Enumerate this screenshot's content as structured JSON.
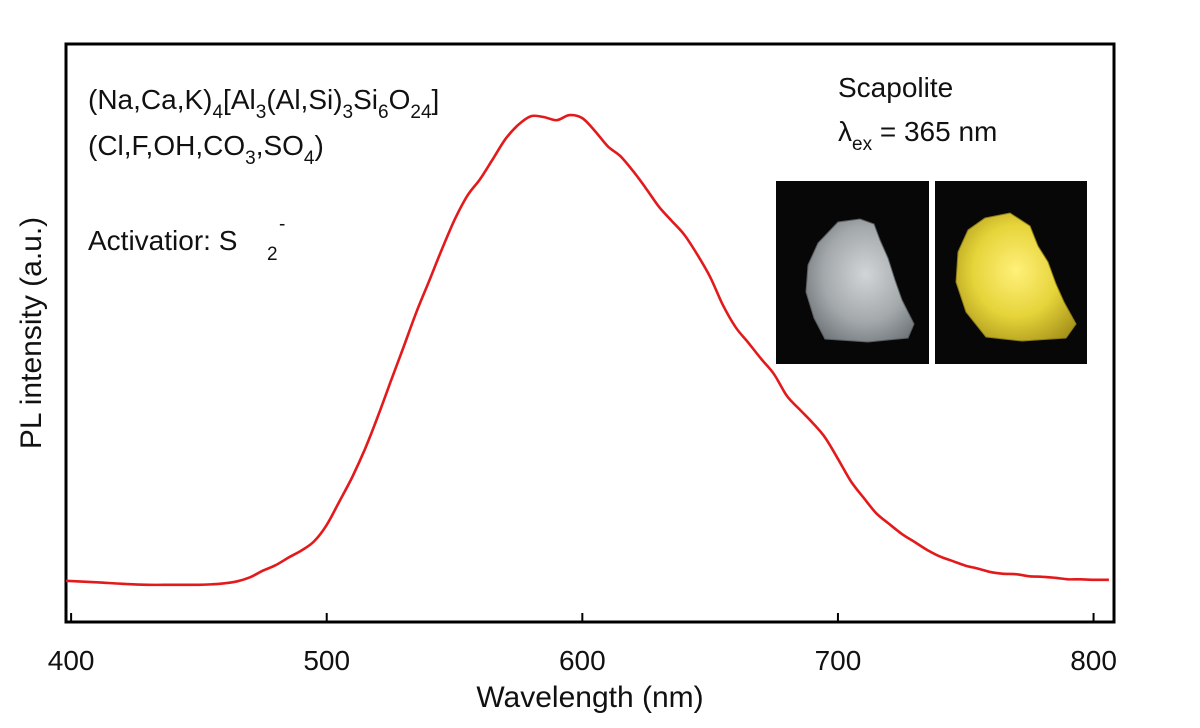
{
  "chart_data": {
    "type": "line",
    "title": "",
    "xlabel": "Wavelength (nm)",
    "ylabel": "PL intensity (a.u.)",
    "xlim": [
      398,
      808
    ],
    "ylim": [
      0,
      1
    ],
    "xticks": [
      400,
      500,
      600,
      700,
      800
    ],
    "xtick_labels": [
      "400",
      "500",
      "600",
      "700",
      "800"
    ],
    "yticks": [],
    "grid": false,
    "series": [
      {
        "name": "Scapolite PL emission",
        "color": "#e31a1c",
        "x": [
          398,
          410,
          420,
          430,
          440,
          450,
          455,
          460,
          465,
          470,
          475,
          480,
          485,
          490,
          495,
          500,
          505,
          510,
          515,
          520,
          525,
          530,
          535,
          540,
          545,
          550,
          555,
          560,
          565,
          570,
          575,
          580,
          585,
          590,
          595,
          600,
          605,
          610,
          615,
          620,
          625,
          630,
          635,
          640,
          645,
          650,
          655,
          660,
          665,
          670,
          675,
          680,
          685,
          690,
          695,
          700,
          705,
          710,
          715,
          720,
          725,
          730,
          735,
          740,
          745,
          750,
          755,
          760,
          765,
          770,
          775,
          780,
          785,
          790,
          795,
          800,
          806
        ],
        "y": [
          0.048,
          0.045,
          0.042,
          0.04,
          0.04,
          0.04,
          0.041,
          0.043,
          0.047,
          0.055,
          0.068,
          0.079,
          0.094,
          0.108,
          0.126,
          0.159,
          0.206,
          0.254,
          0.31,
          0.374,
          0.443,
          0.511,
          0.58,
          0.642,
          0.705,
          0.764,
          0.812,
          0.845,
          0.885,
          0.925,
          0.953,
          0.97,
          0.968,
          0.962,
          0.972,
          0.966,
          0.94,
          0.91,
          0.89,
          0.86,
          0.826,
          0.79,
          0.762,
          0.734,
          0.695,
          0.651,
          0.595,
          0.551,
          0.52,
          0.488,
          0.458,
          0.415,
          0.388,
          0.362,
          0.332,
          0.29,
          0.246,
          0.213,
          0.182,
          0.161,
          0.141,
          0.125,
          0.109,
          0.096,
          0.087,
          0.078,
          0.072,
          0.065,
          0.062,
          0.061,
          0.057,
          0.056,
          0.054,
          0.051,
          0.051,
          0.05,
          0.05
        ]
      }
    ],
    "annotations": {
      "formula_line1": {
        "parts": [
          {
            "t": "(Na,Ca,K)"
          },
          {
            "t": "4",
            "sub": true
          },
          {
            "t": "[Al"
          },
          {
            "t": "3",
            "sub": true
          },
          {
            "t": "(Al,Si)"
          },
          {
            "t": "3",
            "sub": true
          },
          {
            "t": "Si"
          },
          {
            "t": "6",
            "sub": true
          },
          {
            "t": "O"
          },
          {
            "t": "24",
            "sub": true
          },
          {
            "t": "]"
          }
        ]
      },
      "formula_line2": {
        "parts": [
          {
            "t": "(Cl,F,OH,CO"
          },
          {
            "t": "3",
            "sub": true
          },
          {
            "t": ",SO"
          },
          {
            "t": "4",
            "sub": true
          },
          {
            "t": ")"
          }
        ]
      },
      "activator": {
        "label": "Activatior: S",
        "subscript": "2",
        "superscript": "-"
      },
      "mineral_name": "Scapolite",
      "excitation": {
        "symbol": "λ",
        "subscript": "ex",
        "text": " = 365 nm"
      },
      "photo_left": "sample under daylight (grey-white)",
      "photo_right": "sample under 365 nm UV (yellow glow)"
    }
  },
  "colors": {
    "line": "#e31a1c",
    "axis": "#000000",
    "photo_background": "#070707",
    "glow": "#e6d43a"
  }
}
